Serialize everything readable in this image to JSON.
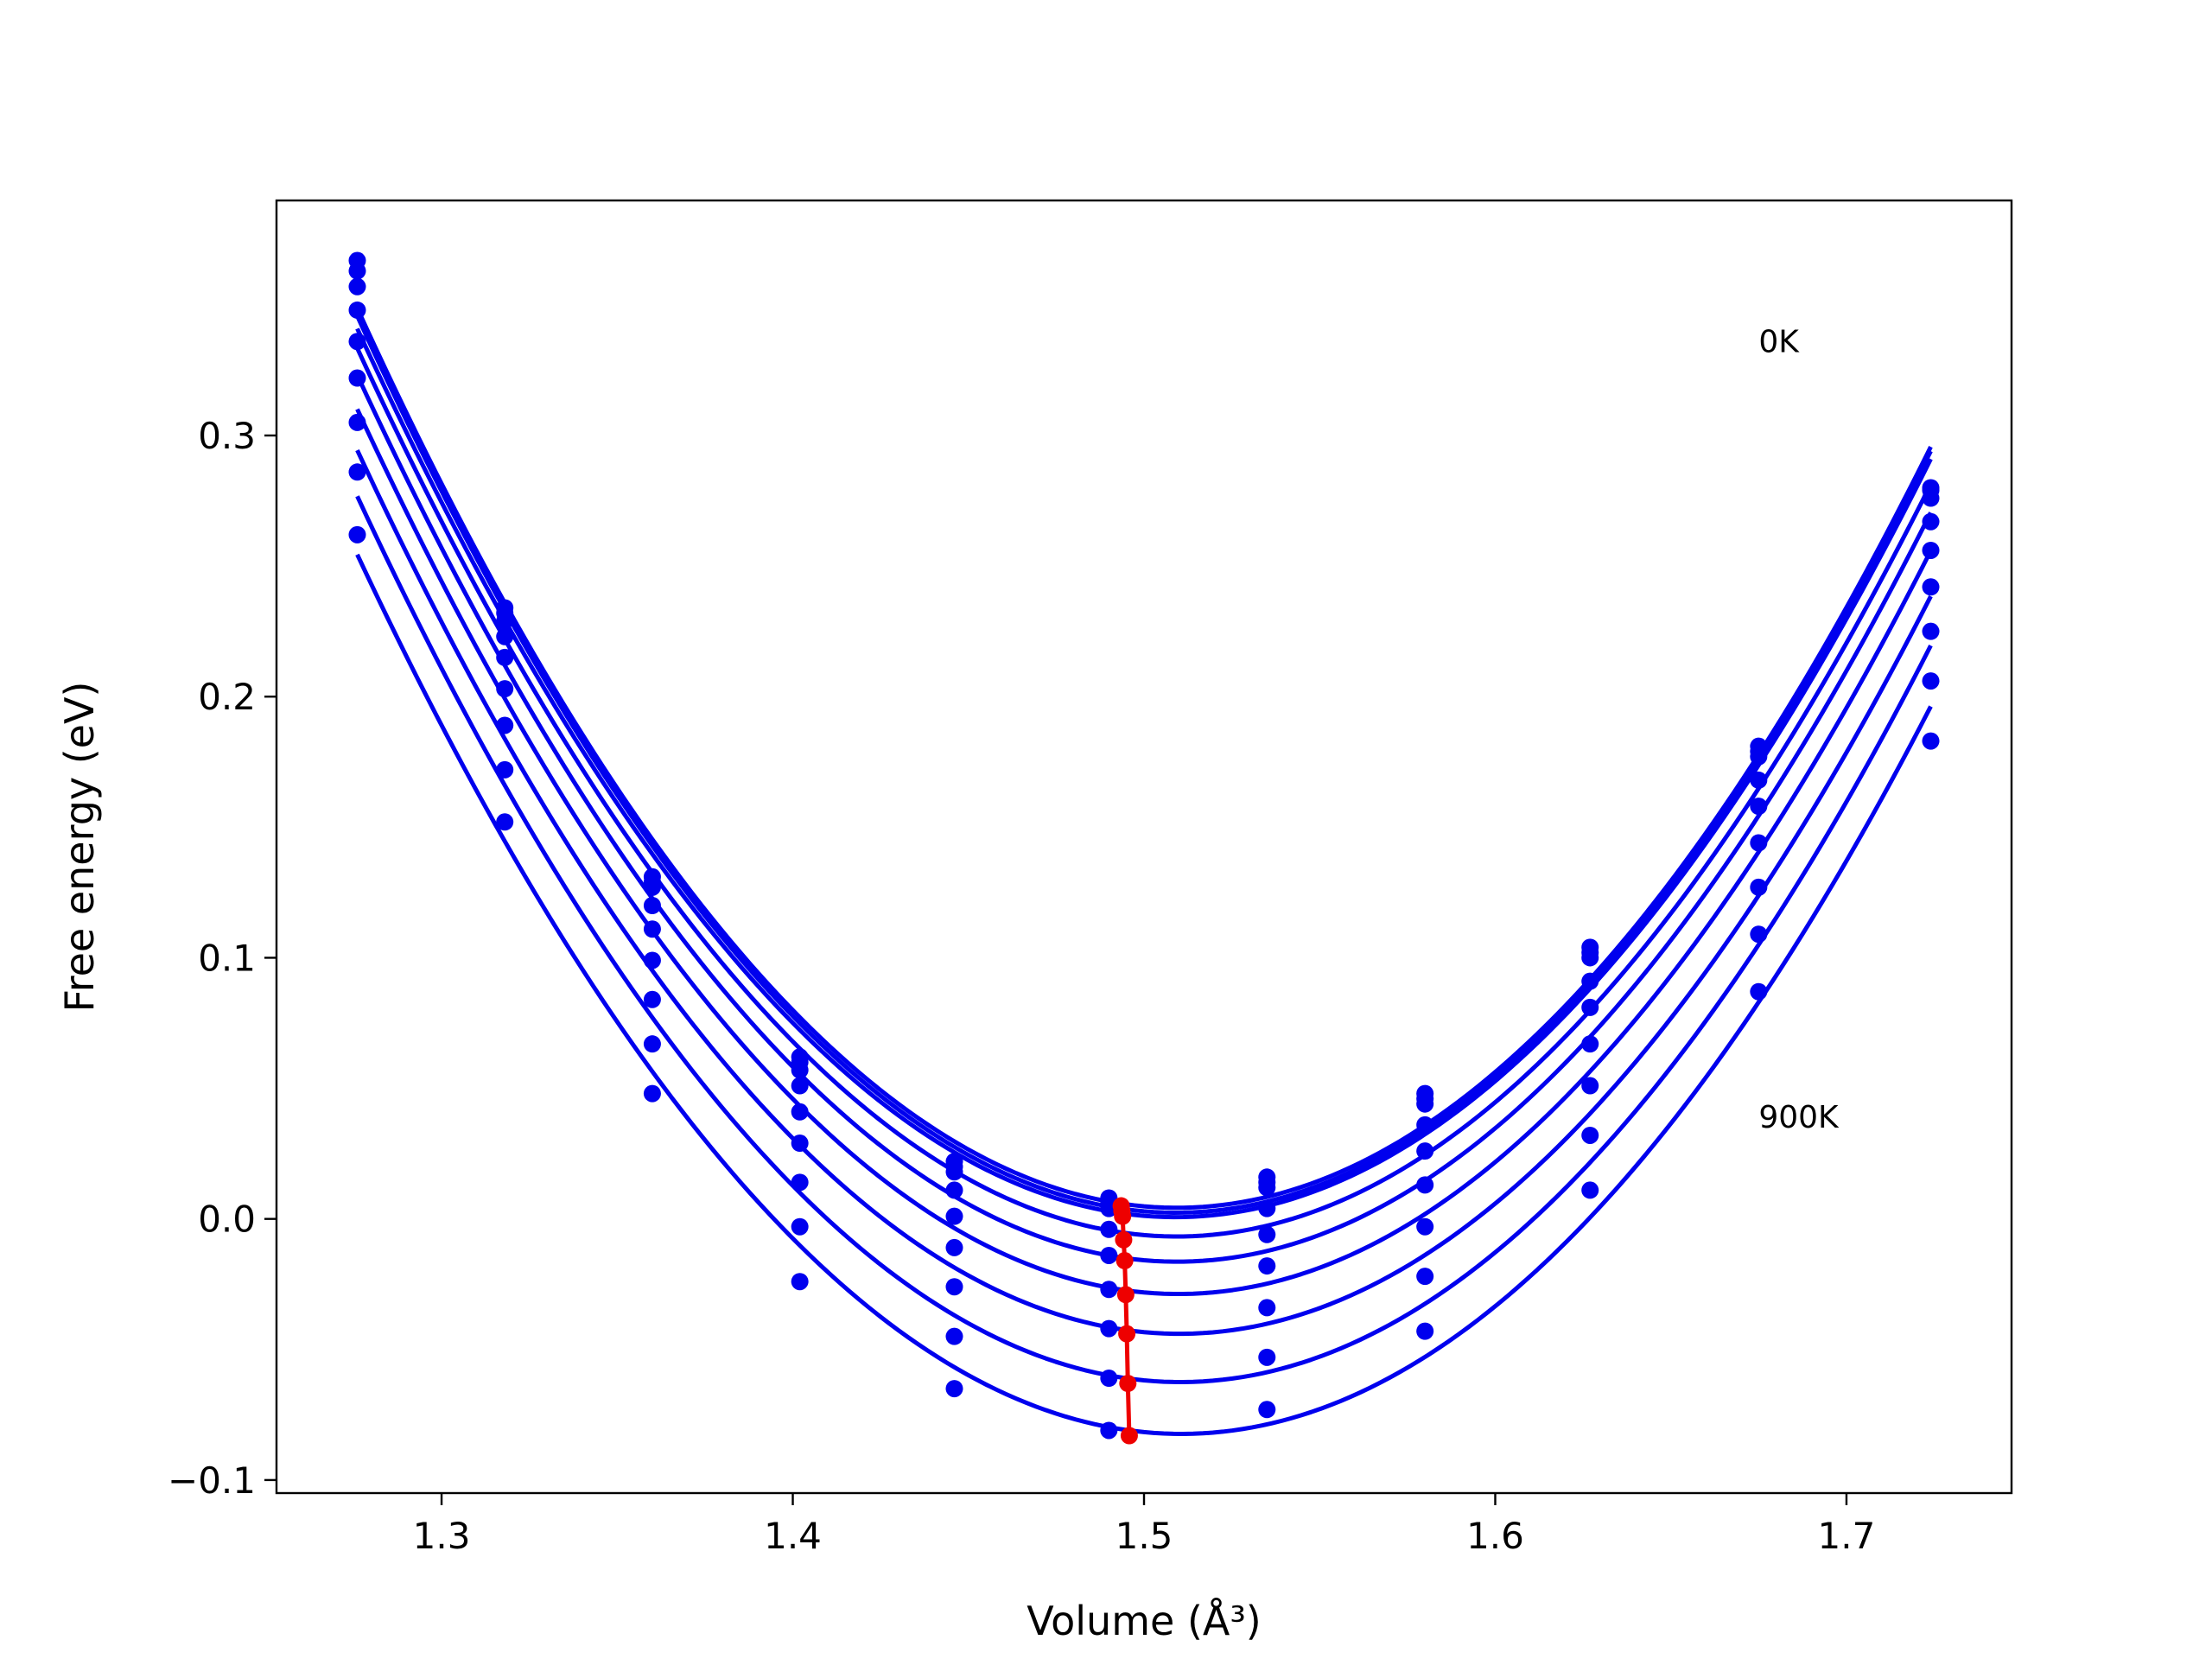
{
  "chart_data": {
    "type": "line",
    "title": "",
    "xlabel": "Volume (Å³)",
    "ylabel": "Free energy (eV)",
    "xlim": [
      1.253,
      1.747
    ],
    "ylim": [
      -0.105,
      0.39
    ],
    "xticks": [
      1.3,
      1.4,
      1.5,
      1.6,
      1.7
    ],
    "yticks": [
      -0.1,
      0.0,
      0.1,
      0.2,
      0.3
    ],
    "x_tick_labels": [
      "1.3",
      "1.4",
      "1.5",
      "1.6",
      "1.7"
    ],
    "y_tick_labels": [
      "−0.1",
      "0.0",
      "0.1",
      "0.2",
      "0.3"
    ],
    "grid": false,
    "x": [
      1.276,
      1.318,
      1.36,
      1.402,
      1.446,
      1.49,
      1.535,
      1.58,
      1.627,
      1.675,
      1.724
    ],
    "series": [
      {
        "values": [
          0.367,
          0.234,
          0.131,
          0.062,
          0.022,
          0.008,
          0.016,
          0.048,
          0.104,
          0.181,
          0.28
        ]
      },
      {
        "values": [
          0.363,
          0.232,
          0.129,
          0.06,
          0.02,
          0.006,
          0.014,
          0.046,
          0.102,
          0.179,
          0.279
        ]
      },
      {
        "values": [
          0.357,
          0.229,
          0.127,
          0.057,
          0.018,
          0.004,
          0.012,
          0.044,
          0.1,
          0.177,
          0.276
        ]
      },
      {
        "values": [
          0.348,
          0.223,
          0.12,
          0.051,
          0.011,
          -0.004,
          0.004,
          0.036,
          0.091,
          0.168,
          0.267
        ]
      },
      {
        "values": [
          0.336,
          0.215,
          0.111,
          0.041,
          0.001,
          -0.014,
          -0.006,
          0.026,
          0.081,
          0.158,
          0.256
        ]
      },
      {
        "values": [
          0.322,
          0.203,
          0.099,
          0.029,
          -0.011,
          -0.027,
          -0.018,
          0.013,
          0.067,
          0.144,
          0.242
        ]
      },
      {
        "values": [
          0.305,
          0.189,
          0.084,
          0.014,
          -0.026,
          -0.042,
          -0.034,
          -0.003,
          0.051,
          0.127,
          0.225
        ]
      },
      {
        "values": [
          0.286,
          0.172,
          0.067,
          -0.003,
          -0.045,
          -0.061,
          -0.053,
          -0.022,
          0.032,
          0.109,
          0.206
        ]
      },
      {
        "values": [
          0.262,
          0.152,
          0.048,
          -0.024,
          -0.065,
          -0.081,
          -0.073,
          -0.043,
          0.011,
          0.087,
          0.183
        ]
      }
    ],
    "minimum_path": {
      "x": [
        1.4935,
        1.4937,
        1.4939,
        1.4942,
        1.4945,
        1.4948,
        1.4951,
        1.4954,
        1.4958
      ],
      "y": [
        0.005,
        0.003,
        0.001,
        -0.008,
        -0.016,
        -0.029,
        -0.044,
        -0.063,
        -0.083
      ]
    },
    "annotations": [
      {
        "text": "0K",
        "x": 1.675,
        "y": 0.332
      },
      {
        "text": "900K",
        "x": 1.675,
        "y": 0.035
      }
    ],
    "colors": {
      "curves": "#0000ee",
      "minimum_path": "#ee0000",
      "axes": "#000000"
    }
  }
}
